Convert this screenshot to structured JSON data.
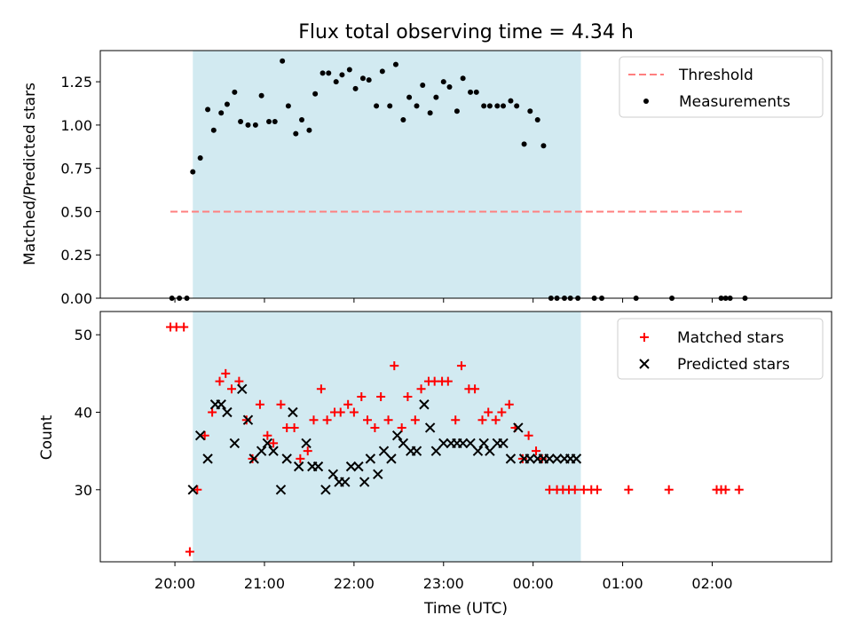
{
  "chart_data": [
    {
      "type": "scatter",
      "title": "Flux total observing time = 4.34 h",
      "xlabel": "",
      "ylabel": "Matched/Predicted stars",
      "x_axis": "time (minutes from 20:00 UTC)",
      "xlim": [
        -50,
        440
      ],
      "ylim": [
        0,
        1.43
      ],
      "yticks": [
        0.0,
        0.25,
        0.5,
        0.75,
        1.0,
        1.25
      ],
      "ytick_labels": [
        "0.00",
        "0.25",
        "0.50",
        "0.75",
        "1.00",
        "1.25"
      ],
      "shaded_span": [
        12,
        272
      ],
      "shade_color": "#add8e6",
      "threshold": {
        "name": "Threshold",
        "value": 0.5,
        "x_range": [
          -3,
          382
        ],
        "color": "#ff7f7f",
        "style": "dashed"
      },
      "legend": [
        "Threshold",
        "Measurements"
      ],
      "legend_position": "upper right",
      "series": [
        {
          "name": "Measurements",
          "color": "#000000",
          "x": [
            -2,
            3,
            8,
            12,
            17,
            22,
            26,
            31,
            35,
            40,
            44,
            49,
            54,
            58,
            63,
            67,
            72,
            76,
            81,
            85,
            90,
            94,
            99,
            103,
            108,
            112,
            117,
            121,
            126,
            130,
            135,
            139,
            144,
            148,
            153,
            157,
            162,
            166,
            171,
            175,
            180,
            184,
            189,
            193,
            198,
            202,
            207,
            211,
            216,
            220,
            225,
            229,
            234,
            238,
            243,
            247,
            252,
            256,
            261,
            265,
            270,
            281,
            286,
            309,
            333,
            366,
            369,
            372,
            382
          ],
          "y": [
            0.0,
            0.0,
            0.0,
            0.73,
            0.81,
            1.09,
            0.97,
            1.07,
            1.12,
            1.19,
            1.02,
            1.0,
            1.0,
            1.17,
            1.02,
            1.02,
            1.37,
            1.11,
            0.95,
            1.03,
            0.97,
            1.18,
            1.3,
            1.3,
            1.25,
            1.29,
            1.32,
            1.21,
            1.27,
            1.26,
            1.11,
            1.31,
            1.11,
            1.35,
            1.03,
            1.16,
            1.11,
            1.23,
            1.07,
            1.16,
            1.25,
            1.22,
            1.08,
            1.27,
            1.19,
            1.19,
            1.11,
            1.11,
            1.11,
            1.11,
            1.14,
            1.11,
            0.89,
            1.08,
            1.03,
            0.88,
            0.0,
            0.0,
            0.0,
            0.0,
            0.0,
            0.0,
            0.0,
            0.0,
            0.0,
            0.0,
            0.0,
            0.0,
            0.0
          ]
        }
      ]
    },
    {
      "type": "scatter",
      "xlabel": "Time (UTC)",
      "ylabel": "Count",
      "xlim": [
        -50,
        440
      ],
      "ylim": [
        20.7,
        53
      ],
      "yticks": [
        30,
        40,
        50
      ],
      "ytick_labels": [
        "30",
        "40",
        "50"
      ],
      "xticks": [
        0,
        60,
        120,
        180,
        240,
        300,
        360
      ],
      "xtick_labels": [
        "20:00",
        "21:00",
        "22:00",
        "23:00",
        "00:00",
        "01:00",
        "02:00"
      ],
      "shaded_span": [
        12,
        272
      ],
      "legend": [
        "Matched stars",
        "Predicted stars"
      ],
      "legend_position": "upper right",
      "series": [
        {
          "name": "Matched stars",
          "marker": "+",
          "color": "#ff0000",
          "x": [
            -3,
            1,
            6,
            10,
            15,
            20,
            25,
            30,
            34,
            38,
            43,
            48,
            52,
            57,
            62,
            66,
            71,
            75,
            80,
            84,
            89,
            93,
            98,
            102,
            107,
            111,
            116,
            120,
            125,
            129,
            134,
            138,
            143,
            147,
            152,
            156,
            161,
            165,
            170,
            174,
            179,
            183,
            188,
            192,
            197,
            201,
            206,
            210,
            215,
            219,
            224,
            228,
            233,
            237,
            242,
            246,
            251,
            256,
            260,
            264,
            268,
            274,
            279,
            283,
            304,
            331,
            363,
            366,
            369,
            378
          ],
          "y": [
            51,
            51,
            51,
            22,
            30,
            37,
            40,
            44,
            45,
            43,
            44,
            39,
            34,
            41,
            37,
            36,
            41,
            38,
            38,
            34,
            35,
            39,
            43,
            39,
            40,
            40,
            41,
            40,
            42,
            39,
            38,
            42,
            39,
            46,
            38,
            42,
            39,
            43,
            44,
            44,
            44,
            44,
            39,
            46,
            43,
            43,
            39,
            40,
            39,
            40,
            41,
            38,
            34,
            37,
            35,
            34,
            30,
            30,
            30,
            30,
            30,
            30,
            30,
            30,
            30,
            30,
            30,
            30,
            30,
            30
          ]
        },
        {
          "name": "Predicted stars",
          "marker": "x",
          "color": "#000000",
          "x": [
            12,
            17,
            22,
            27,
            31,
            35,
            40,
            45,
            49,
            53,
            58,
            62,
            66,
            71,
            75,
            79,
            83,
            88,
            92,
            96,
            101,
            106,
            110,
            114,
            118,
            123,
            127,
            131,
            136,
            140,
            145,
            149,
            153,
            158,
            162,
            167,
            171,
            175,
            180,
            185,
            189,
            193,
            198,
            203,
            207,
            211,
            216,
            220,
            225,
            230,
            234,
            238,
            243,
            247,
            251,
            256,
            261,
            265,
            269
          ],
          "y": [
            30,
            37,
            34,
            41,
            41,
            40,
            36,
            43,
            39,
            34,
            35,
            36,
            35,
            30,
            34,
            40,
            33,
            36,
            33,
            33,
            30,
            32,
            31,
            31,
            33,
            33,
            31,
            34,
            32,
            35,
            34,
            37,
            36,
            35,
            35,
            41,
            38,
            35,
            36,
            36,
            36,
            36,
            36,
            35,
            36,
            35,
            36,
            36,
            34,
            38,
            34,
            34,
            34,
            34,
            34,
            34,
            34,
            34,
            34
          ]
        }
      ]
    }
  ]
}
